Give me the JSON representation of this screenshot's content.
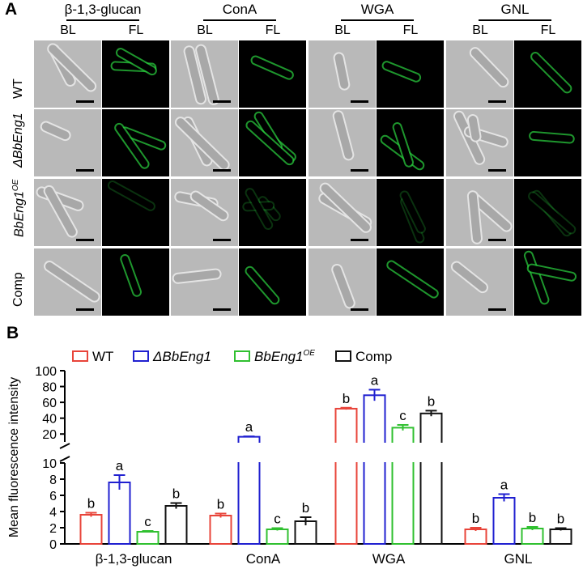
{
  "panels": {
    "a": "A",
    "b": "B"
  },
  "micrograph": {
    "lectins": [
      "β-1,3-glucan",
      "ConA",
      "WGA",
      "GNL"
    ],
    "channels": [
      "BL",
      "FL"
    ],
    "rows": [
      "WT",
      "ΔBbEng1",
      "BbEng1",
      "Comp"
    ],
    "row_superscript": "OE"
  },
  "chart_data": {
    "type": "bar",
    "categories": [
      "β-1,3-glucan",
      "ConA",
      "WGA",
      "GNL"
    ],
    "ylabel": "Mean fluorescence intensity",
    "axis_break": {
      "lower": [
        0,
        10
      ],
      "upper": [
        10,
        100
      ]
    },
    "lower_ticks": [
      0,
      2,
      4,
      6,
      8,
      10
    ],
    "upper_ticks": [
      20,
      40,
      60,
      80,
      100
    ],
    "legend": {
      "placement": "top",
      "entries": [
        {
          "label": "WT",
          "superscript": ""
        },
        {
          "label": "ΔBbEng1",
          "superscript": ""
        },
        {
          "label": "BbEng1",
          "superscript": "OE"
        },
        {
          "label": "Comp",
          "superscript": ""
        }
      ]
    },
    "series": [
      {
        "name": "WT",
        "color": "#e8443a",
        "values": [
          3.6,
          3.5,
          52,
          1.8
        ],
        "errors": [
          0.25,
          0.25,
          1.2,
          0.2
        ],
        "letters": [
          "b",
          "b",
          "b",
          "b"
        ]
      },
      {
        "name": "ΔBbEng1",
        "color": "#2020d0",
        "values": [
          7.6,
          16.5,
          69,
          5.7
        ],
        "errors": [
          0.9,
          0.5,
          7,
          0.45
        ],
        "letters": [
          "a",
          "a",
          "a",
          "a"
        ]
      },
      {
        "name": "BbEng1OE",
        "color": "#30c030",
        "values": [
          1.5,
          1.8,
          28,
          1.9
        ],
        "errors": [
          0.1,
          0.15,
          3.5,
          0.2
        ],
        "letters": [
          "c",
          "c",
          "c",
          "b"
        ]
      },
      {
        "name": "Comp",
        "color": "#111111",
        "values": [
          4.7,
          2.8,
          46,
          1.8
        ],
        "errors": [
          0.35,
          0.5,
          3.5,
          0.15
        ],
        "letters": [
          "b",
          "b",
          "b",
          "b"
        ]
      }
    ]
  }
}
